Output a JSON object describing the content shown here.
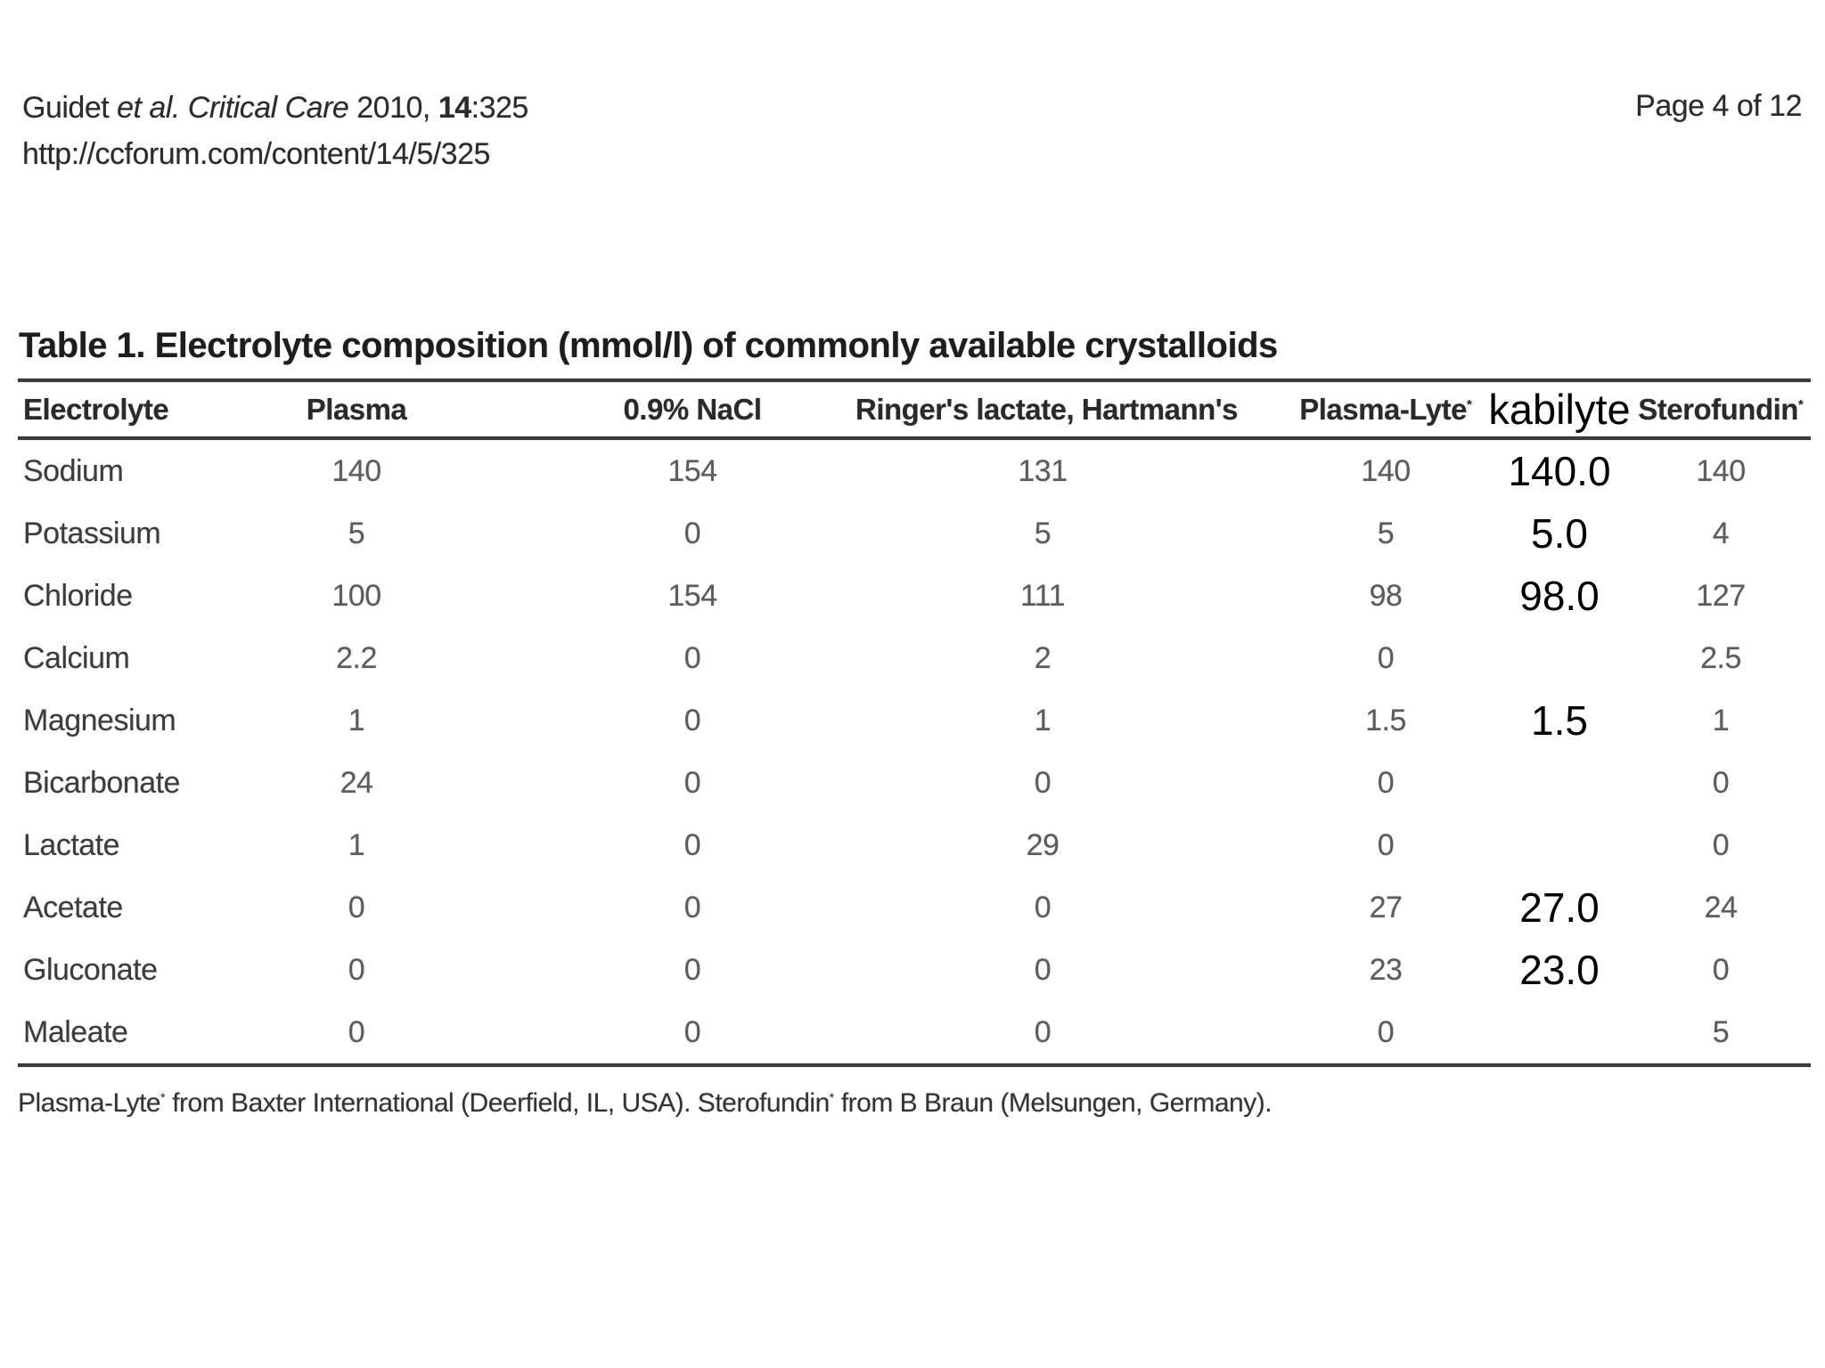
{
  "page": {
    "citation": {
      "p1": "Guidet ",
      "p2": "et al. Critical Care",
      "p3": " 2010, ",
      "p4": "14",
      "p5": ":325"
    },
    "url": "http://ccforum.com/content/14/5/325",
    "page_indicator": "Page 4 of 12"
  },
  "table": {
    "title": "Table 1. Electrolyte composition (mmol/l) of commonly available crystalloids",
    "reg_mark": "*",
    "headers": [
      "Electrolyte",
      "Plasma",
      "0.9% NaCl",
      "Ringer's lactate, Hartmann's",
      "Plasma-Lyte",
      "kabilyte",
      "Sterofundin"
    ],
    "rows": [
      {
        "label": "Sodium",
        "values": [
          "140",
          "154",
          "131",
          "140",
          "140.0",
          "140"
        ]
      },
      {
        "label": "Potassium",
        "values": [
          "5",
          "0",
          "5",
          "5",
          "5.0",
          "4"
        ]
      },
      {
        "label": "Chloride",
        "values": [
          "100",
          "154",
          "111",
          "98",
          "98.0",
          "127"
        ]
      },
      {
        "label": "Calcium",
        "values": [
          "2.2",
          "0",
          "2",
          "0",
          "",
          "2.5"
        ]
      },
      {
        "label": "Magnesium",
        "values": [
          "1",
          "0",
          "1",
          "1.5",
          "1.5",
          "1"
        ]
      },
      {
        "label": "Bicarbonate",
        "values": [
          "24",
          "0",
          "0",
          "0",
          "",
          "0"
        ]
      },
      {
        "label": "Lactate",
        "values": [
          "1",
          "0",
          "29",
          "0",
          "",
          "0"
        ]
      },
      {
        "label": "Acetate",
        "values": [
          "0",
          "0",
          "0",
          "27",
          "27.0",
          "24"
        ]
      },
      {
        "label": "Gluconate",
        "values": [
          "0",
          "0",
          "0",
          "23",
          "23.0",
          "0"
        ]
      },
      {
        "label": "Maleate",
        "values": [
          "0",
          "0",
          "0",
          "0",
          "",
          "5"
        ]
      }
    ],
    "footnote": {
      "f1": "Plasma-Lyte",
      "f2": " from Baxter International (Deerfield, IL, USA). Sterofundin",
      "f3": " from B Braun (Melsungen, Germany)."
    }
  },
  "colors": {
    "scan_text": "#3c3c3e",
    "scan_values": "#5c5c5e",
    "overlay_text": "#000000",
    "rule": "#3a3a3c",
    "background": "#ffffff"
  }
}
